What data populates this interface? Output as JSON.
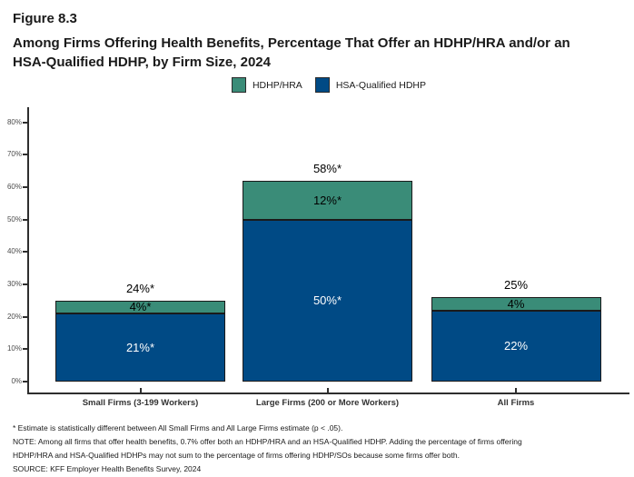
{
  "figure": {
    "number": "Figure 8.3",
    "title": "Among Firms Offering Health Benefits, Percentage That Offer an HDHP/HRA and/or an HSA-Qualified HDHP, by Firm Size, 2024"
  },
  "legend": [
    {
      "label": "HDHP/HRA",
      "color": "#3A8C78"
    },
    {
      "label": "HSA-Qualified HDHP",
      "color": "#004A85"
    }
  ],
  "chart_data": {
    "type": "bar",
    "stacked": true,
    "title": "Among Firms Offering Health Benefits, Percentage That Offer an HDHP/HRA and/or an HSA-Qualified HDHP, by Firm Size, 2024",
    "categories": [
      "Small Firms (3-199 Workers)",
      "Large Firms (200 or More Workers)",
      "All Firms"
    ],
    "series": [
      {
        "name": "HSA-Qualified HDHP",
        "color": "#004A85",
        "label_color": "#FFFFFF",
        "values": [
          21,
          50,
          22
        ],
        "data_labels": [
          "21%*",
          "50%*",
          "22%"
        ]
      },
      {
        "name": "HDHP/HRA",
        "color": "#3A8C78",
        "label_color": "#000000",
        "values": [
          4,
          12,
          4
        ],
        "data_labels": [
          "4%*",
          "12%*",
          "4%"
        ]
      }
    ],
    "stack_total_labels": [
      "24%*",
      "58%*",
      "25%"
    ],
    "xlabel": "",
    "ylabel": "",
    "ylim": [
      0,
      80
    ],
    "ytick_step": 10,
    "ytick_suffix": "%",
    "grid": false,
    "legend_position": "top-center",
    "bar_border_color": "#1A1A1A"
  },
  "footnotes": {
    "lines": [
      "* Estimate is statistically different between All Small Firms and All Large Firms estimate (p < .05).",
      "NOTE: Among all firms that offer health benefits, 0.7% offer both an HDHP/HRA and an HSA-Qualified HDHP. Adding the percentage of firms offering",
      "HDHP/HRA and HSA-Qualified HDHPs may not sum to the percentage of firms offering HDHP/SOs because some firms offer both.",
      "SOURCE: KFF Employer Health Benefits Survey, 2024"
    ]
  }
}
